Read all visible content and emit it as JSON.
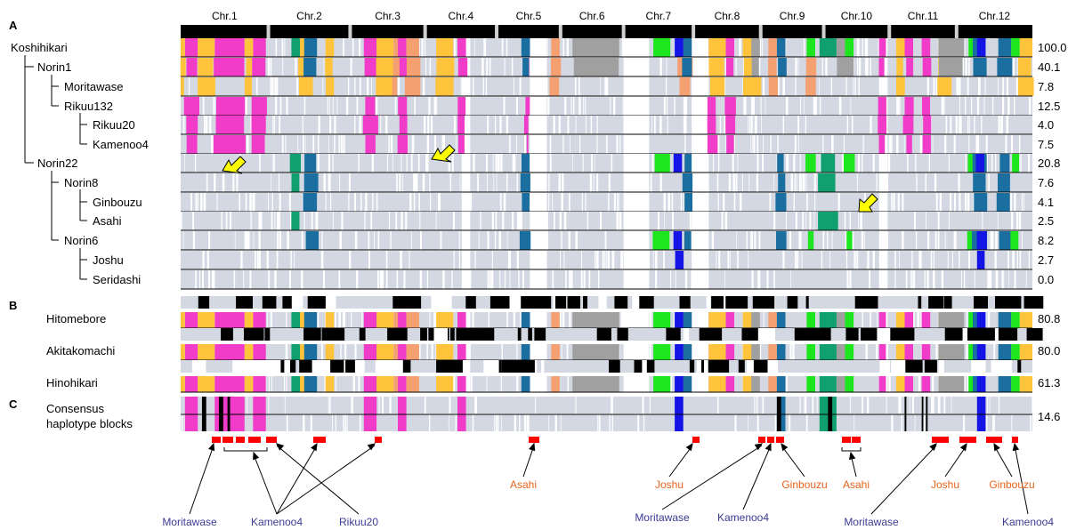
{
  "panels": {
    "a": "A",
    "b": "B",
    "c": "C"
  },
  "chromosomes": [
    {
      "label": "Chr.1",
      "start": 0.0,
      "end": 0.103
    },
    {
      "label": "Chr.2",
      "start": 0.103,
      "end": 0.199
    },
    {
      "label": "Chr.3",
      "start": 0.199,
      "end": 0.287
    },
    {
      "label": "Chr.4",
      "start": 0.287,
      "end": 0.371
    },
    {
      "label": "Chr.5",
      "start": 0.371,
      "end": 0.446
    },
    {
      "label": "Chr.6",
      "start": 0.446,
      "end": 0.52
    },
    {
      "label": "Chr.7",
      "start": 0.52,
      "end": 0.602
    },
    {
      "label": "Chr.8",
      "start": 0.602,
      "end": 0.681
    },
    {
      "label": "Chr.9",
      "start": 0.681,
      "end": 0.755
    },
    {
      "label": "Chr.10",
      "start": 0.755,
      "end": 0.832
    },
    {
      "label": "Chr.11",
      "start": 0.832,
      "end": 0.911
    },
    {
      "label": "Chr.12",
      "start": 0.911,
      "end": 1.0
    }
  ],
  "pedigree": [
    {
      "name": "Koshihikari",
      "value": "100.0",
      "depth": 0
    },
    {
      "name": "Norin1",
      "value": "40.1",
      "depth": 1
    },
    {
      "name": "Moritawase",
      "value": "7.8",
      "depth": 2
    },
    {
      "name": "Rikuu132",
      "value": "12.5",
      "depth": 2
    },
    {
      "name": "Rikuu20",
      "value": "4.0",
      "depth": 3
    },
    {
      "name": "Kamenoo4",
      "value": "7.5",
      "depth": 3
    },
    {
      "name": "Norin22",
      "value": "20.8",
      "depth": 1
    },
    {
      "name": "Norin8",
      "value": "7.6",
      "depth": 2
    },
    {
      "name": "Ginbouzu",
      "value": "4.1",
      "depth": 3
    },
    {
      "name": "Asahi",
      "value": "2.5",
      "depth": 3
    },
    {
      "name": "Norin6",
      "value": "8.2",
      "depth": 2
    },
    {
      "name": "Joshu",
      "value": "2.7",
      "depth": 3
    },
    {
      "name": "Seridashi",
      "value": "0.0",
      "depth": 3
    }
  ],
  "cultivars_b": [
    {
      "name": "Hitomebore",
      "value": "80.8"
    },
    {
      "name": "Akitakomachi",
      "value": "80.0"
    },
    {
      "name": "Hinohikari",
      "value": "61.3"
    }
  ],
  "consensus": {
    "line1": "Consensus",
    "line2": "haplotype blocks",
    "value": "14.6"
  },
  "colors": {
    "background": "#d3d8e3",
    "magenta": "#f03cc8",
    "orange": "#ffc43c",
    "salmon": "#f5a070",
    "gray": "#a0a0a0",
    "green": "#1ee61e",
    "teal": "#10a070",
    "steel": "#1a6ea0",
    "blue": "#1414e6",
    "black": "#000000",
    "red": "#ff0000",
    "arrow_yellow": "#ffff00",
    "label_blue": "#3c3c96",
    "label_orange": "#e6641e"
  },
  "annotations": [
    {
      "text": "Moritawase",
      "color": "blue"
    },
    {
      "text": "Kamenoo4",
      "color": "blue"
    },
    {
      "text": "Rikuu20",
      "color": "blue"
    },
    {
      "text": "Asahi",
      "color": "orange"
    },
    {
      "text": "Joshu",
      "color": "orange"
    },
    {
      "text": "Moritawase",
      "color": "blue"
    },
    {
      "text": "Kamenoo4",
      "color": "blue"
    },
    {
      "text": "Ginbouzu",
      "color": "orange"
    },
    {
      "text": "Asahi",
      "color": "orange"
    },
    {
      "text": "Moritawase",
      "color": "blue"
    },
    {
      "text": "Joshu",
      "color": "orange"
    },
    {
      "text": "Ginbouzu",
      "color": "orange"
    },
    {
      "text": "Kamenoo4",
      "color": "blue"
    }
  ]
}
